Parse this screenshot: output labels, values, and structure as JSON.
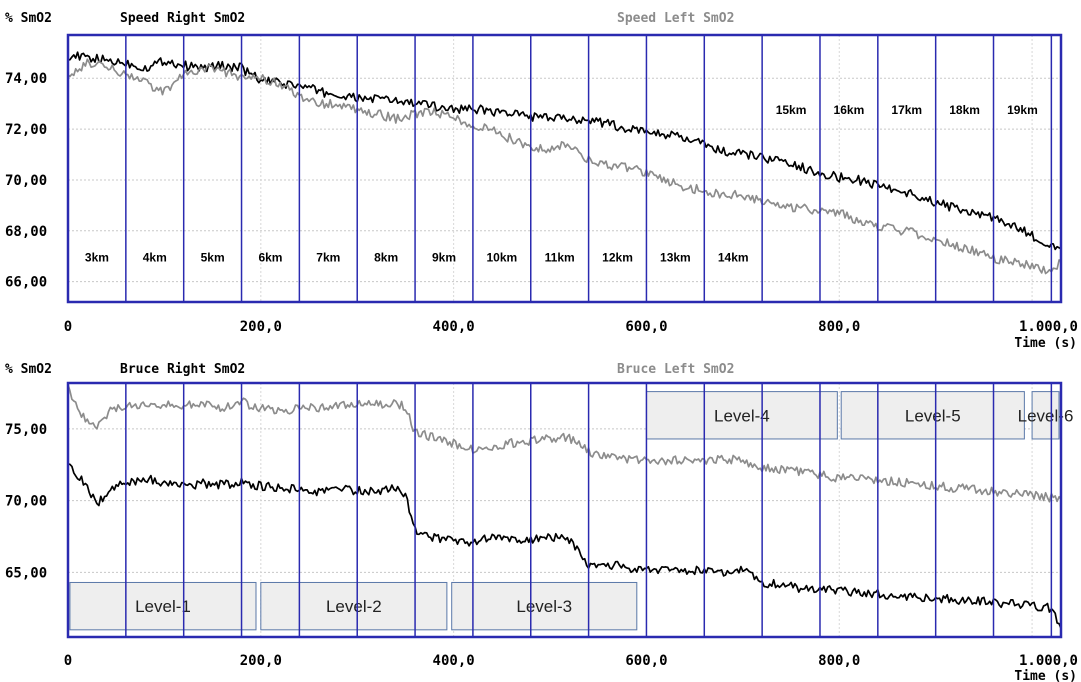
{
  "chart_data": [
    {
      "type": "line",
      "ylabel": "% SmO2",
      "xlabel": "Time (s)",
      "xlim": [
        0,
        1030
      ],
      "ylim": [
        65.2,
        75.7
      ],
      "xticks": [
        0,
        200,
        400,
        600,
        800,
        1000
      ],
      "xtick_labels": [
        "0",
        "200,0",
        "400,0",
        "600,0",
        "800,0",
        "1.000,0"
      ],
      "yticks": [
        66,
        68,
        70,
        72,
        74
      ],
      "ytick_labels": [
        "66,00",
        "68,00",
        "70,00",
        "72,00",
        "74,00"
      ],
      "grid": true,
      "legend": "top",
      "segment_boundaries": [
        0,
        60,
        120,
        180,
        240,
        300,
        360,
        420,
        480,
        540,
        600,
        660,
        720,
        780,
        840,
        900,
        960,
        1020
      ],
      "segments": [
        {
          "label": "3km",
          "x_center": 30,
          "y": 66.8
        },
        {
          "label": "4km",
          "x_center": 90,
          "y": 66.8
        },
        {
          "label": "5km",
          "x_center": 150,
          "y": 66.8
        },
        {
          "label": "6km",
          "x_center": 210,
          "y": 66.8
        },
        {
          "label": "7km",
          "x_center": 270,
          "y": 66.8
        },
        {
          "label": "8km",
          "x_center": 330,
          "y": 66.8
        },
        {
          "label": "9km",
          "x_center": 390,
          "y": 66.8
        },
        {
          "label": "10km",
          "x_center": 450,
          "y": 66.8
        },
        {
          "label": "11km",
          "x_center": 510,
          "y": 66.8
        },
        {
          "label": "12km",
          "x_center": 570,
          "y": 66.8
        },
        {
          "label": "13km",
          "x_center": 630,
          "y": 66.8
        },
        {
          "label": "14km",
          "x_center": 690,
          "y": 66.8
        },
        {
          "label": "15km",
          "x_center": 750,
          "y": 72.6
        },
        {
          "label": "16km",
          "x_center": 810,
          "y": 72.6
        },
        {
          "label": "17km",
          "x_center": 870,
          "y": 72.6
        },
        {
          "label": "18km",
          "x_center": 930,
          "y": 72.6
        },
        {
          "label": "19km",
          "x_center": 990,
          "y": 72.6
        }
      ],
      "series": [
        {
          "name": "Speed Right SmO2",
          "color": "#000000",
          "x": [
            0,
            20,
            40,
            60,
            80,
            100,
            120,
            140,
            160,
            180,
            200,
            220,
            240,
            260,
            280,
            300,
            320,
            340,
            360,
            380,
            400,
            420,
            440,
            460,
            480,
            500,
            520,
            540,
            560,
            580,
            600,
            620,
            640,
            660,
            680,
            700,
            720,
            740,
            760,
            780,
            800,
            820,
            840,
            860,
            880,
            900,
            920,
            940,
            960,
            980,
            1000,
            1020,
            1030
          ],
          "y": [
            74.9,
            74.8,
            74.7,
            74.6,
            74.4,
            74.7,
            74.5,
            74.4,
            74.5,
            74.4,
            73.9,
            73.8,
            73.7,
            73.5,
            73.3,
            73.2,
            73.2,
            73.1,
            73.0,
            72.9,
            72.8,
            72.8,
            72.7,
            72.6,
            72.5,
            72.4,
            72.4,
            72.4,
            72.2,
            72.0,
            71.9,
            71.8,
            71.6,
            71.4,
            71.1,
            71.0,
            70.9,
            70.7,
            70.5,
            70.3,
            70.1,
            70.0,
            69.8,
            69.6,
            69.4,
            69.1,
            68.9,
            68.7,
            68.5,
            68.2,
            67.8,
            67.4,
            67.3
          ]
        },
        {
          "name": "Speed Left SmO2",
          "color": "#8c8c8c",
          "x": [
            0,
            20,
            40,
            60,
            80,
            100,
            120,
            140,
            160,
            180,
            200,
            220,
            240,
            260,
            280,
            300,
            320,
            340,
            360,
            380,
            400,
            420,
            440,
            460,
            480,
            500,
            520,
            540,
            560,
            580,
            600,
            620,
            640,
            660,
            680,
            700,
            720,
            740,
            760,
            780,
            800,
            820,
            840,
            860,
            880,
            900,
            920,
            940,
            960,
            980,
            1000,
            1020,
            1030
          ],
          "y": [
            74.1,
            74.6,
            74.4,
            74.2,
            73.8,
            73.5,
            74.1,
            74.4,
            74.3,
            74.0,
            74.0,
            73.8,
            73.3,
            73.0,
            73.0,
            72.8,
            72.6,
            72.4,
            72.6,
            72.7,
            72.4,
            72.2,
            72.0,
            71.6,
            71.3,
            71.2,
            71.4,
            70.8,
            70.6,
            70.5,
            70.3,
            70.0,
            69.7,
            69.6,
            69.4,
            69.4,
            69.2,
            69.0,
            68.9,
            68.8,
            68.7,
            68.4,
            68.2,
            68.0,
            67.9,
            67.7,
            67.4,
            67.2,
            66.9,
            66.8,
            66.6,
            66.4,
            66.8
          ]
        }
      ]
    },
    {
      "type": "line",
      "ylabel": "% SmO2",
      "xlabel": "Time (s)",
      "xlim": [
        0,
        1030
      ],
      "ylim": [
        60.5,
        78.2
      ],
      "xticks": [
        0,
        200,
        400,
        600,
        800,
        1000
      ],
      "xtick_labels": [
        "0",
        "200,0",
        "400,0",
        "600,0",
        "800,0",
        "1.000,0"
      ],
      "yticks": [
        65,
        70,
        75
      ],
      "ytick_labels": [
        "65,00",
        "70,00",
        "75,00"
      ],
      "grid": true,
      "legend": "top",
      "segment_boundaries": [
        0,
        60,
        120,
        180,
        240,
        300,
        360,
        420,
        480,
        540,
        600,
        660,
        720,
        780,
        840,
        900,
        960,
        1020
      ],
      "levels": [
        {
          "label": "Level-1",
          "x0": 2,
          "x1": 195,
          "y0": 61.0,
          "y1": 64.3
        },
        {
          "label": "Level-2",
          "x0": 200,
          "x1": 393,
          "y0": 61.0,
          "y1": 64.3
        },
        {
          "label": "Level-3",
          "x0": 398,
          "x1": 590,
          "y0": 61.0,
          "y1": 64.3
        },
        {
          "label": "Level-4",
          "x0": 600,
          "x1": 798,
          "y0": 74.3,
          "y1": 77.6
        },
        {
          "label": "Level-5",
          "x0": 802,
          "x1": 992,
          "y0": 74.3,
          "y1": 77.6
        },
        {
          "label": "Level-6",
          "x0": 1000,
          "x1": 1030,
          "y0": 74.3,
          "y1": 77.6
        }
      ],
      "series": [
        {
          "name": "Bruce Right SmO2",
          "color": "#000000",
          "x": [
            0,
            10,
            20,
            30,
            40,
            50,
            60,
            80,
            100,
            120,
            140,
            160,
            180,
            200,
            220,
            240,
            260,
            280,
            300,
            320,
            340,
            350,
            360,
            380,
            400,
            420,
            440,
            460,
            480,
            500,
            520,
            540,
            560,
            580,
            600,
            620,
            640,
            660,
            680,
            700,
            720,
            740,
            760,
            780,
            800,
            820,
            840,
            860,
            880,
            900,
            920,
            940,
            960,
            980,
            1000,
            1020,
            1030
          ],
          "y": [
            72.8,
            71.8,
            71.0,
            69.8,
            70.5,
            71.2,
            71.3,
            71.5,
            71.3,
            71.0,
            71.2,
            71.1,
            71.3,
            71.0,
            70.9,
            70.8,
            70.6,
            70.8,
            70.7,
            70.6,
            70.9,
            70.3,
            68.0,
            67.4,
            67.2,
            67.1,
            67.6,
            67.3,
            67.2,
            67.5,
            67.3,
            65.6,
            65.6,
            65.3,
            65.1,
            65.3,
            65.2,
            65.1,
            65.0,
            65.2,
            64.3,
            64.1,
            63.9,
            63.8,
            63.7,
            63.6,
            63.5,
            63.4,
            63.3,
            63.2,
            63.1,
            63.0,
            62.9,
            62.8,
            62.7,
            62.5,
            61.1
          ]
        },
        {
          "name": "Bruce Left SmO2",
          "color": "#8c8c8c",
          "x": [
            0,
            10,
            20,
            30,
            40,
            50,
            60,
            80,
            100,
            120,
            140,
            160,
            180,
            200,
            220,
            240,
            260,
            280,
            300,
            320,
            340,
            350,
            360,
            380,
            400,
            420,
            440,
            460,
            480,
            500,
            520,
            540,
            560,
            580,
            600,
            620,
            640,
            660,
            680,
            700,
            720,
            740,
            760,
            780,
            800,
            820,
            840,
            860,
            880,
            900,
            920,
            940,
            960,
            980,
            1000,
            1020,
            1030
          ],
          "y": [
            77.8,
            76.4,
            75.6,
            75.0,
            76.0,
            76.5,
            76.6,
            76.8,
            76.7,
            76.6,
            76.8,
            76.5,
            76.9,
            76.4,
            76.3,
            76.4,
            76.5,
            76.6,
            76.8,
            76.7,
            76.8,
            76.5,
            74.8,
            74.4,
            74.0,
            73.6,
            73.8,
            74.0,
            74.2,
            74.3,
            74.4,
            73.4,
            73.1,
            72.9,
            72.8,
            72.8,
            72.8,
            72.7,
            72.9,
            72.8,
            72.3,
            72.2,
            72.0,
            71.8,
            71.6,
            71.5,
            71.4,
            71.3,
            71.2,
            71.0,
            70.9,
            70.8,
            70.6,
            70.5,
            70.4,
            70.2,
            70.1
          ]
        }
      ]
    }
  ],
  "charts_meta": [
    {
      "legend_right": "Speed Right SmO2",
      "legend_left": "Speed Left SmO2"
    },
    {
      "legend_right": "Bruce Right SmO2",
      "legend_left": "Bruce Left SmO2"
    }
  ]
}
